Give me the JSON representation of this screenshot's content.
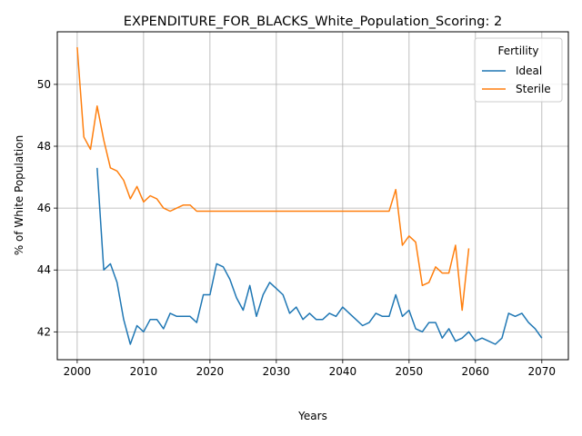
{
  "chart_data": {
    "type": "line",
    "title": "EXPENDITURE_FOR_BLACKS_White_Population_Scoring: 2",
    "xlabel": "Years",
    "ylabel": "% of White Population",
    "xlim": [
      1997,
      2074
    ],
    "ylim": [
      41.1,
      51.7
    ],
    "xticks": [
      2000,
      2010,
      2020,
      2030,
      2040,
      2050,
      2060,
      2070
    ],
    "yticks": [
      42,
      44,
      46,
      48,
      50
    ],
    "grid": true,
    "legend": {
      "title": "Fertility",
      "placement": "top-right"
    },
    "series": [
      {
        "name": "Ideal",
        "color": "#1f77b4",
        "points": [
          [
            2003,
            47.3
          ],
          [
            2004,
            44.0
          ],
          [
            2005,
            44.2
          ],
          [
            2006,
            43.6
          ],
          [
            2007,
            42.4
          ],
          [
            2008,
            41.6
          ],
          [
            2009,
            42.2
          ],
          [
            2010,
            42.0
          ],
          [
            2011,
            42.4
          ],
          [
            2012,
            42.4
          ],
          [
            2013,
            42.1
          ],
          [
            2014,
            42.6
          ],
          [
            2015,
            42.5
          ],
          [
            2016,
            42.5
          ],
          [
            2017,
            42.5
          ],
          [
            2018,
            42.3
          ],
          [
            2019,
            43.2
          ],
          [
            2020,
            43.2
          ],
          [
            2021,
            44.2
          ],
          [
            2022,
            44.1
          ],
          [
            2023,
            43.7
          ],
          [
            2024,
            43.1
          ],
          [
            2025,
            42.7
          ],
          [
            2026,
            43.5
          ],
          [
            2027,
            42.5
          ],
          [
            2028,
            43.2
          ],
          [
            2029,
            43.6
          ],
          [
            2030,
            43.4
          ],
          [
            2031,
            43.2
          ],
          [
            2032,
            42.6
          ],
          [
            2033,
            42.8
          ],
          [
            2034,
            42.4
          ],
          [
            2035,
            42.6
          ],
          [
            2036,
            42.4
          ],
          [
            2037,
            42.4
          ],
          [
            2038,
            42.6
          ],
          [
            2039,
            42.5
          ],
          [
            2040,
            42.8
          ],
          [
            2041,
            42.6
          ],
          [
            2042,
            42.4
          ],
          [
            2043,
            42.2
          ],
          [
            2044,
            42.3
          ],
          [
            2045,
            42.6
          ],
          [
            2046,
            42.5
          ],
          [
            2047,
            42.5
          ],
          [
            2048,
            43.2
          ],
          [
            2049,
            42.5
          ],
          [
            2050,
            42.7
          ],
          [
            2051,
            42.1
          ],
          [
            2052,
            42.0
          ],
          [
            2053,
            42.3
          ],
          [
            2054,
            42.3
          ],
          [
            2055,
            41.8
          ],
          [
            2056,
            42.1
          ],
          [
            2057,
            41.7
          ],
          [
            2058,
            41.8
          ],
          [
            2059,
            42.0
          ],
          [
            2060,
            41.7
          ],
          [
            2061,
            41.8
          ],
          [
            2062,
            41.7
          ],
          [
            2063,
            41.6
          ],
          [
            2064,
            41.8
          ],
          [
            2065,
            42.6
          ],
          [
            2066,
            42.5
          ],
          [
            2067,
            42.6
          ],
          [
            2068,
            42.3
          ],
          [
            2069,
            42.1
          ],
          [
            2070,
            41.8
          ]
        ]
      },
      {
        "name": "Sterile",
        "color": "#ff7f0e",
        "points": [
          [
            2000,
            51.2
          ],
          [
            2001,
            48.3
          ],
          [
            2002,
            47.9
          ],
          [
            2003,
            49.3
          ],
          [
            2004,
            48.2
          ],
          [
            2005,
            47.3
          ],
          [
            2006,
            47.2
          ],
          [
            2007,
            46.9
          ],
          [
            2008,
            46.3
          ],
          [
            2009,
            46.7
          ],
          [
            2010,
            46.2
          ],
          [
            2011,
            46.4
          ],
          [
            2012,
            46.3
          ],
          [
            2013,
            46.0
          ],
          [
            2014,
            45.9
          ],
          [
            2015,
            46.0
          ],
          [
            2016,
            46.1
          ],
          [
            2017,
            46.1
          ],
          [
            2018,
            45.9
          ],
          [
            2019,
            45.9
          ],
          [
            2020,
            45.9
          ],
          [
            2030,
            45.9
          ],
          [
            2040,
            45.9
          ],
          [
            2047,
            45.9
          ],
          [
            2048,
            46.6
          ],
          [
            2049,
            44.8
          ],
          [
            2050,
            45.1
          ],
          [
            2051,
            44.9
          ],
          [
            2052,
            43.5
          ],
          [
            2053,
            43.6
          ],
          [
            2054,
            44.1
          ],
          [
            2055,
            43.9
          ],
          [
            2056,
            43.9
          ],
          [
            2057,
            44.8
          ],
          [
            2058,
            42.7
          ],
          [
            2059,
            44.7
          ]
        ]
      }
    ]
  }
}
